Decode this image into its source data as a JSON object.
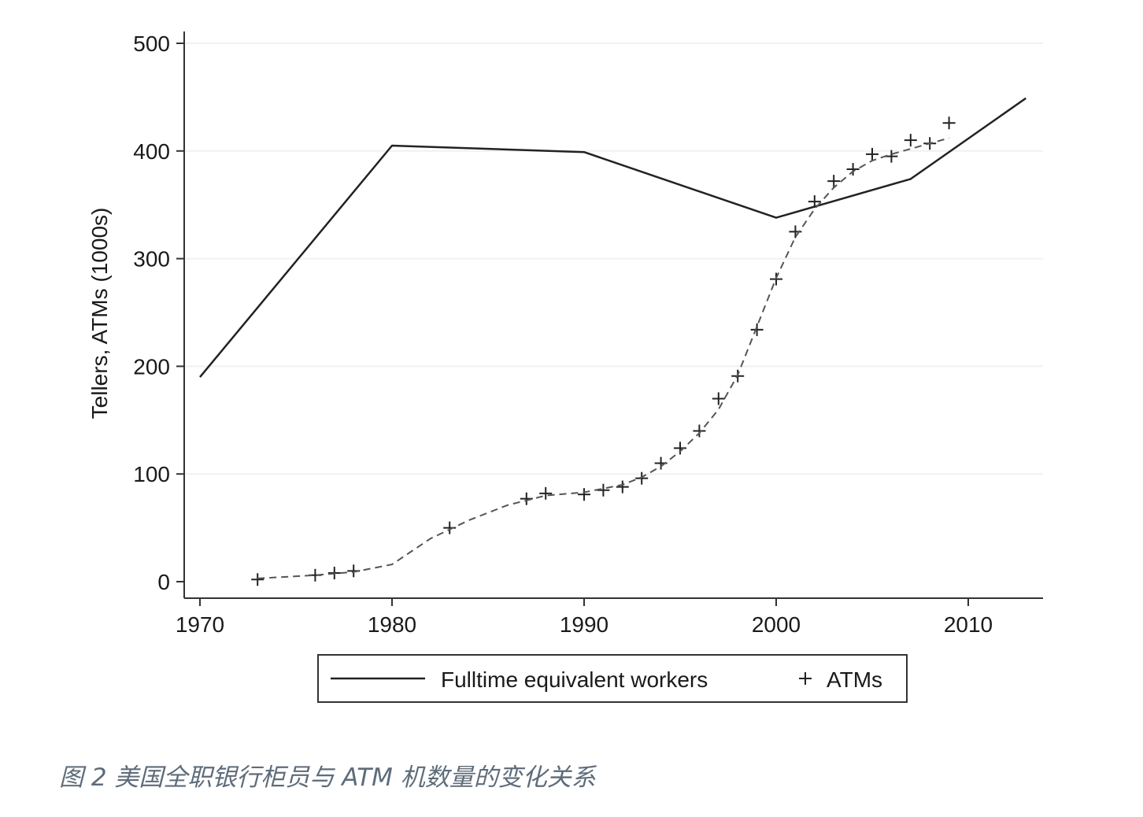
{
  "caption": "图 2 美国全职银行柜员与 ATM 机数量的变化关系",
  "chart_data": {
    "type": "line",
    "title": "",
    "xlabel": "",
    "ylabel": "Tellers, ATMs (1000s)",
    "xlim": [
      1970,
      2013
    ],
    "ylim": [
      0,
      500
    ],
    "x_ticks": [
      1970,
      1980,
      1990,
      2000,
      2010
    ],
    "y_ticks": [
      0,
      100,
      200,
      300,
      400,
      500
    ],
    "grid": true,
    "legend_position": "bottom",
    "series": [
      {
        "name": "Fulltime equivalent workers",
        "style": "solid line",
        "x": [
          1970,
          1980,
          1990,
          2000,
          2007,
          2013
        ],
        "y": [
          190,
          405,
          399,
          338,
          374,
          449
        ]
      },
      {
        "name": "ATMs",
        "style": "plus markers",
        "x": [
          1973,
          1976,
          1977,
          1978,
          1983,
          1987,
          1988,
          1990,
          1991,
          1992,
          1993,
          1994,
          1995,
          1996,
          1997,
          1998,
          1999,
          2000,
          2001,
          2002,
          2003,
          2004,
          2005,
          2006,
          2007,
          2008,
          2009
        ],
        "y": [
          2,
          6,
          8,
          10,
          50,
          77,
          82,
          81,
          85,
          88,
          96,
          110,
          124,
          140,
          170,
          191,
          234,
          281,
          325,
          353,
          372,
          383,
          397,
          395,
          410,
          407,
          426
        ]
      },
      {
        "name": "",
        "style": "dashed fitted curve",
        "x": [
          1973,
          1976,
          1978,
          1980,
          1982,
          1984,
          1986,
          1988,
          1990,
          1992,
          1993,
          1994,
          1995,
          1996,
          1997,
          1998,
          1999,
          2000,
          2001,
          2002,
          2003,
          2004,
          2005,
          2006,
          2007,
          2008,
          2009
        ],
        "y": [
          3,
          6,
          9,
          16,
          40,
          57,
          71,
          80,
          83,
          90,
          97,
          107,
          121,
          138,
          160,
          192,
          237,
          282,
          320,
          346,
          366,
          381,
          391,
          397,
          402,
          407,
          412
        ]
      }
    ]
  }
}
